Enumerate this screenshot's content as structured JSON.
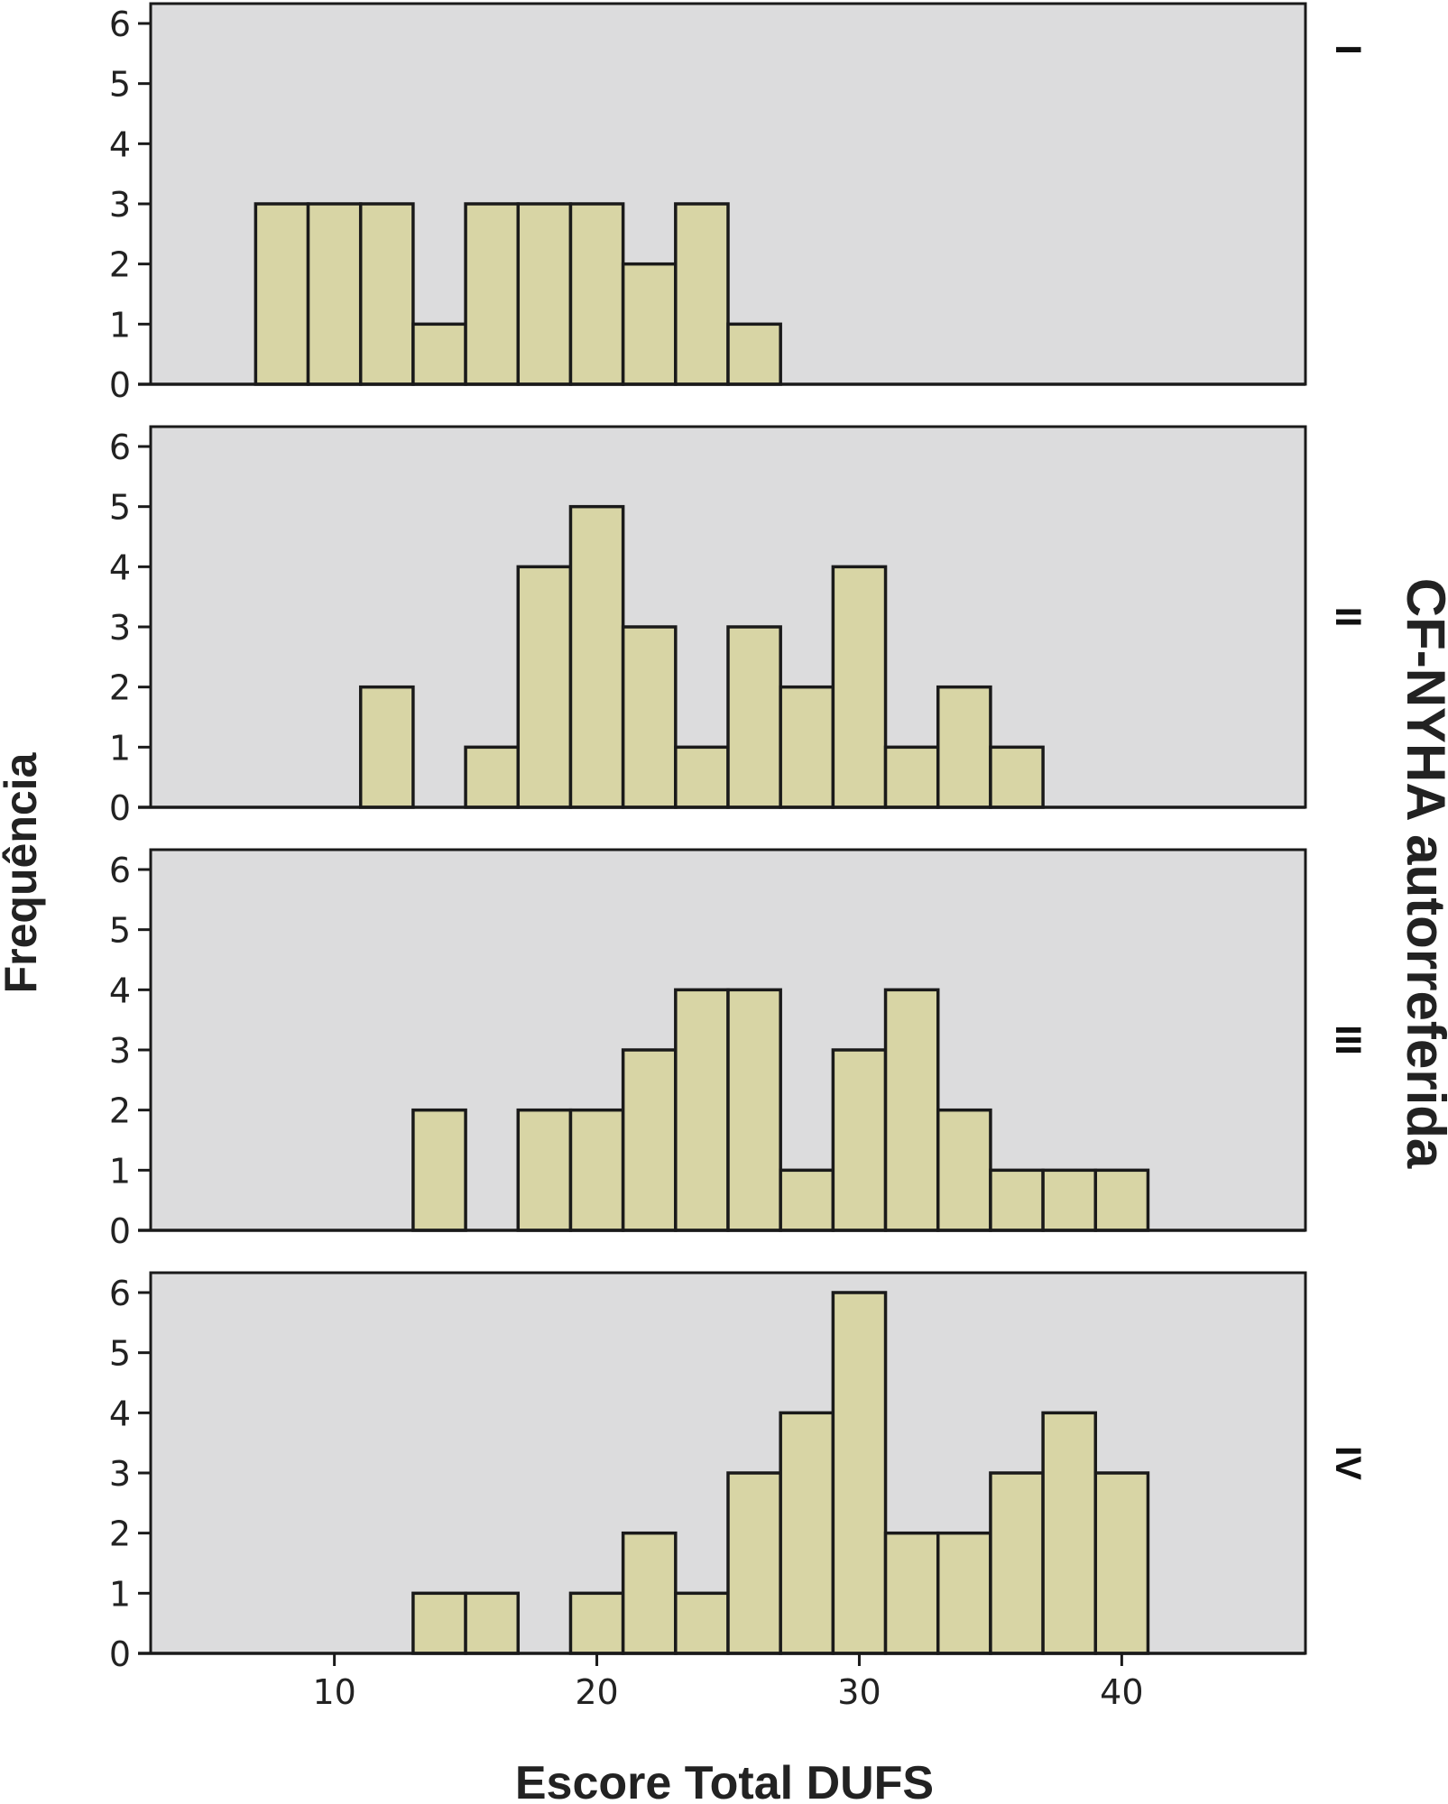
{
  "chart_data": {
    "type": "bar",
    "subtype": "faceted-histogram",
    "x_axis": {
      "label": "Escore Total DUFS",
      "range": [
        3,
        47
      ],
      "ticks": [
        10,
        20,
        30,
        40
      ]
    },
    "y_axis": {
      "label": "Frequência",
      "range": [
        0,
        6.3
      ],
      "ticks": [
        0,
        1,
        2,
        3,
        4,
        5,
        6
      ]
    },
    "facet_title": "CF-NYHA autorreferida",
    "bin_width": 2,
    "panels": [
      {
        "label": "I",
        "bins": [
          {
            "x": 8,
            "value": 3
          },
          {
            "x": 10,
            "value": 3
          },
          {
            "x": 12,
            "value": 3
          },
          {
            "x": 14,
            "value": 1
          },
          {
            "x": 16,
            "value": 3
          },
          {
            "x": 18,
            "value": 3
          },
          {
            "x": 20,
            "value": 3
          },
          {
            "x": 22,
            "value": 2
          },
          {
            "x": 24,
            "value": 3
          },
          {
            "x": 26,
            "value": 1
          }
        ]
      },
      {
        "label": "II",
        "bins": [
          {
            "x": 12,
            "value": 2
          },
          {
            "x": 16,
            "value": 1
          },
          {
            "x": 18,
            "value": 4
          },
          {
            "x": 20,
            "value": 5
          },
          {
            "x": 22,
            "value": 3
          },
          {
            "x": 24,
            "value": 1
          },
          {
            "x": 26,
            "value": 3
          },
          {
            "x": 28,
            "value": 2
          },
          {
            "x": 30,
            "value": 4
          },
          {
            "x": 32,
            "value": 1
          },
          {
            "x": 34,
            "value": 2
          },
          {
            "x": 36,
            "value": 1
          }
        ]
      },
      {
        "label": "III",
        "bins": [
          {
            "x": 14,
            "value": 2
          },
          {
            "x": 18,
            "value": 2
          },
          {
            "x": 20,
            "value": 2
          },
          {
            "x": 22,
            "value": 3
          },
          {
            "x": 24,
            "value": 4
          },
          {
            "x": 26,
            "value": 4
          },
          {
            "x": 28,
            "value": 1
          },
          {
            "x": 30,
            "value": 3
          },
          {
            "x": 32,
            "value": 4
          },
          {
            "x": 34,
            "value": 2
          },
          {
            "x": 36,
            "value": 1
          },
          {
            "x": 38,
            "value": 1
          },
          {
            "x": 40,
            "value": 1
          }
        ]
      },
      {
        "label": "IV",
        "bins": [
          {
            "x": 14,
            "value": 1
          },
          {
            "x": 16,
            "value": 1
          },
          {
            "x": 20,
            "value": 1
          },
          {
            "x": 22,
            "value": 2
          },
          {
            "x": 24,
            "value": 1
          },
          {
            "x": 26,
            "value": 3
          },
          {
            "x": 28,
            "value": 4
          },
          {
            "x": 30,
            "value": 6
          },
          {
            "x": 32,
            "value": 2
          },
          {
            "x": 34,
            "value": 2
          },
          {
            "x": 36,
            "value": 3
          },
          {
            "x": 38,
            "value": 4
          },
          {
            "x": 40,
            "value": 3
          }
        ]
      }
    ],
    "colors": {
      "bar_fill": "#d8d5a5",
      "bar_stroke": "#1a1a1a",
      "panel_background": "#dcdcdd",
      "panel_border": "#1a1a1a"
    },
    "grid": false
  }
}
